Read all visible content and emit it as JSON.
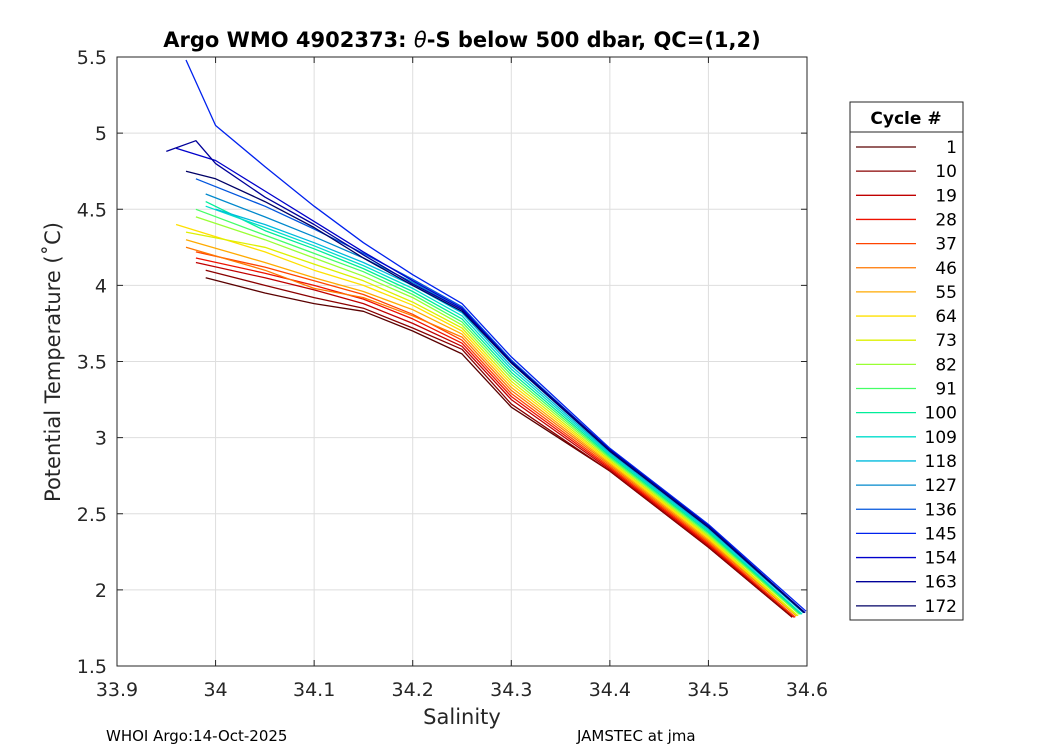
{
  "chart_data": {
    "type": "line",
    "title_prefix": "Argo WMO 4902373: ",
    "title_theta": "θ",
    "title_suffix": "-S below 500 dbar,  QC=(1,2)",
    "xlabel": "Salinity",
    "ylabel": "Potential Temperature (˚C)",
    "xlim": [
      33.9,
      34.6
    ],
    "ylim": [
      1.5,
      5.5
    ],
    "xticks": [
      33.9,
      34.0,
      34.1,
      34.2,
      34.3,
      34.4,
      34.5,
      34.6
    ],
    "xtick_labels": [
      "33.9",
      "34",
      "34.1",
      "34.2",
      "34.3",
      "34.4",
      "34.5",
      "34.6"
    ],
    "yticks": [
      1.5,
      2.0,
      2.5,
      3.0,
      3.5,
      4.0,
      4.5,
      5.0,
      5.5
    ],
    "ytick_labels": [
      "1.5",
      "2",
      "2.5",
      "3",
      "3.5",
      "4",
      "4.5",
      "5",
      "5.5"
    ],
    "grid": true,
    "legend_title": "Cycle #",
    "legend_position": "outside-right",
    "series": [
      {
        "name": "1",
        "color": "#5a0000",
        "points": [
          [
            33.99,
            4.05
          ],
          [
            34.05,
            3.95
          ],
          [
            34.1,
            3.88
          ],
          [
            34.15,
            3.83
          ],
          [
            34.2,
            3.7
          ],
          [
            34.25,
            3.55
          ],
          [
            34.3,
            3.2
          ],
          [
            34.4,
            2.78
          ],
          [
            34.5,
            2.28
          ],
          [
            34.585,
            1.82
          ]
        ]
      },
      {
        "name": "10",
        "color": "#8a0000",
        "points": [
          [
            33.99,
            4.1
          ],
          [
            34.05,
            4.0
          ],
          [
            34.1,
            3.92
          ],
          [
            34.15,
            3.85
          ],
          [
            34.2,
            3.72
          ],
          [
            34.25,
            3.58
          ],
          [
            34.3,
            3.22
          ],
          [
            34.4,
            2.78
          ],
          [
            34.5,
            2.28
          ],
          [
            34.585,
            1.82
          ]
        ]
      },
      {
        "name": "19",
        "color": "#c00000",
        "points": [
          [
            33.98,
            4.15
          ],
          [
            34.05,
            4.05
          ],
          [
            34.1,
            3.97
          ],
          [
            34.15,
            3.88
          ],
          [
            34.2,
            3.75
          ],
          [
            34.25,
            3.6
          ],
          [
            34.3,
            3.25
          ],
          [
            34.4,
            2.79
          ],
          [
            34.5,
            2.29
          ],
          [
            34.587,
            1.82
          ]
        ]
      },
      {
        "name": "28",
        "color": "#ee1100",
        "points": [
          [
            33.98,
            4.18
          ],
          [
            34.05,
            4.08
          ],
          [
            34.1,
            4.0
          ],
          [
            34.15,
            3.91
          ],
          [
            34.2,
            3.78
          ],
          [
            34.25,
            3.62
          ],
          [
            34.3,
            3.27
          ],
          [
            34.4,
            2.8
          ],
          [
            34.5,
            2.3
          ],
          [
            34.588,
            1.82
          ]
        ]
      },
      {
        "name": "37",
        "color": "#ff4400",
        "points": [
          [
            33.98,
            4.22
          ],
          [
            34.05,
            4.12
          ],
          [
            34.1,
            4.03
          ],
          [
            34.15,
            3.94
          ],
          [
            34.2,
            3.81
          ],
          [
            34.25,
            3.64
          ],
          [
            34.3,
            3.29
          ],
          [
            34.4,
            2.81
          ],
          [
            34.5,
            2.31
          ],
          [
            34.588,
            1.82
          ]
        ]
      },
      {
        "name": "46",
        "color": "#ff7700",
        "points": [
          [
            33.97,
            4.25
          ],
          [
            34.05,
            4.1
          ],
          [
            34.1,
            3.98
          ],
          [
            34.15,
            3.92
          ],
          [
            34.2,
            3.8
          ],
          [
            34.25,
            3.66
          ],
          [
            34.3,
            3.31
          ],
          [
            34.4,
            2.82
          ],
          [
            34.5,
            2.32
          ],
          [
            34.589,
            1.83
          ]
        ]
      },
      {
        "name": "55",
        "color": "#ffaa00",
        "points": [
          [
            33.97,
            4.3
          ],
          [
            34.05,
            4.15
          ],
          [
            34.1,
            4.05
          ],
          [
            34.15,
            3.96
          ],
          [
            34.2,
            3.84
          ],
          [
            34.25,
            3.68
          ],
          [
            34.3,
            3.33
          ],
          [
            34.4,
            2.83
          ],
          [
            34.5,
            2.33
          ],
          [
            34.59,
            1.83
          ]
        ]
      },
      {
        "name": "64",
        "color": "#ffe000",
        "points": [
          [
            33.96,
            4.4
          ],
          [
            34.05,
            4.22
          ],
          [
            34.1,
            4.1
          ],
          [
            34.15,
            4.0
          ],
          [
            34.2,
            3.87
          ],
          [
            34.25,
            3.7
          ],
          [
            34.3,
            3.35
          ],
          [
            34.4,
            2.84
          ],
          [
            34.5,
            2.34
          ],
          [
            34.59,
            1.83
          ]
        ]
      },
      {
        "name": "73",
        "color": "#ddf000",
        "points": [
          [
            33.97,
            4.35
          ],
          [
            34.05,
            4.25
          ],
          [
            34.1,
            4.14
          ],
          [
            34.15,
            4.03
          ],
          [
            34.2,
            3.89
          ],
          [
            34.25,
            3.72
          ],
          [
            34.3,
            3.37
          ],
          [
            34.4,
            2.85
          ],
          [
            34.5,
            2.35
          ],
          [
            34.591,
            1.83
          ]
        ]
      },
      {
        "name": "82",
        "color": "#99ff33",
        "points": [
          [
            33.98,
            4.45
          ],
          [
            34.05,
            4.3
          ],
          [
            34.1,
            4.18
          ],
          [
            34.15,
            4.06
          ],
          [
            34.2,
            3.92
          ],
          [
            34.25,
            3.74
          ],
          [
            34.3,
            3.39
          ],
          [
            34.4,
            2.86
          ],
          [
            34.5,
            2.36
          ],
          [
            34.592,
            1.84
          ]
        ]
      },
      {
        "name": "91",
        "color": "#44ff66",
        "points": [
          [
            33.98,
            4.5
          ],
          [
            34.05,
            4.33
          ],
          [
            34.1,
            4.21
          ],
          [
            34.15,
            4.09
          ],
          [
            34.2,
            3.94
          ],
          [
            34.25,
            3.76
          ],
          [
            34.3,
            3.41
          ],
          [
            34.4,
            2.87
          ],
          [
            34.5,
            2.37
          ],
          [
            34.593,
            1.84
          ]
        ]
      },
      {
        "name": "100",
        "color": "#00ee99",
        "points": [
          [
            33.99,
            4.55
          ],
          [
            34.05,
            4.36
          ],
          [
            34.1,
            4.24
          ],
          [
            34.15,
            4.11
          ],
          [
            34.2,
            3.96
          ],
          [
            34.25,
            3.78
          ],
          [
            34.3,
            3.43
          ],
          [
            34.4,
            2.88
          ],
          [
            34.5,
            2.38
          ],
          [
            34.594,
            1.84
          ]
        ]
      },
      {
        "name": "109",
        "color": "#00ddcc",
        "points": [
          [
            33.99,
            4.52
          ],
          [
            34.05,
            4.38
          ],
          [
            34.1,
            4.26
          ],
          [
            34.15,
            4.13
          ],
          [
            34.2,
            3.98
          ],
          [
            34.25,
            3.8
          ],
          [
            34.3,
            3.45
          ],
          [
            34.4,
            2.89
          ],
          [
            34.5,
            2.39
          ],
          [
            34.595,
            1.84
          ]
        ]
      },
      {
        "name": "118",
        "color": "#00bbdd",
        "points": [
          [
            34.0,
            4.5
          ],
          [
            34.05,
            4.4
          ],
          [
            34.1,
            4.28
          ],
          [
            34.15,
            4.15
          ],
          [
            34.2,
            4.0
          ],
          [
            34.25,
            3.82
          ],
          [
            34.3,
            3.47
          ],
          [
            34.4,
            2.9
          ],
          [
            34.5,
            2.4
          ],
          [
            34.596,
            1.85
          ]
        ]
      },
      {
        "name": "127",
        "color": "#0088cc",
        "points": [
          [
            33.99,
            4.6
          ],
          [
            34.05,
            4.45
          ],
          [
            34.1,
            4.32
          ],
          [
            34.15,
            4.18
          ],
          [
            34.2,
            4.02
          ],
          [
            34.25,
            3.84
          ],
          [
            34.3,
            3.49
          ],
          [
            34.4,
            2.91
          ],
          [
            34.5,
            2.41
          ],
          [
            34.597,
            1.85
          ]
        ]
      },
      {
        "name": "136",
        "color": "#0055dd",
        "points": [
          [
            33.98,
            4.7
          ],
          [
            34.05,
            4.52
          ],
          [
            34.1,
            4.37
          ],
          [
            34.15,
            4.21
          ],
          [
            34.2,
            4.04
          ],
          [
            34.25,
            3.86
          ],
          [
            34.3,
            3.51
          ],
          [
            34.4,
            2.92
          ],
          [
            34.5,
            2.42
          ],
          [
            34.598,
            1.85
          ]
        ]
      },
      {
        "name": "145",
        "color": "#0022ee",
        "points": [
          [
            33.97,
            5.48
          ],
          [
            34.0,
            5.05
          ],
          [
            34.05,
            4.78
          ],
          [
            34.1,
            4.52
          ],
          [
            34.15,
            4.28
          ],
          [
            34.2,
            4.07
          ],
          [
            34.25,
            3.88
          ],
          [
            34.3,
            3.53
          ],
          [
            34.4,
            2.93
          ],
          [
            34.5,
            2.43
          ],
          [
            34.599,
            1.86
          ]
        ]
      },
      {
        "name": "154",
        "color": "#0000cc",
        "points": [
          [
            33.96,
            4.9
          ],
          [
            34.0,
            4.82
          ],
          [
            34.05,
            4.62
          ],
          [
            34.1,
            4.42
          ],
          [
            34.15,
            4.22
          ],
          [
            34.2,
            4.03
          ],
          [
            34.25,
            3.85
          ],
          [
            34.3,
            3.5
          ],
          [
            34.4,
            2.92
          ],
          [
            34.5,
            2.42
          ],
          [
            34.598,
            1.85
          ]
        ]
      },
      {
        "name": "163",
        "color": "#000099",
        "points": [
          [
            33.95,
            4.88
          ],
          [
            33.98,
            4.95
          ],
          [
            34.0,
            4.8
          ],
          [
            34.05,
            4.58
          ],
          [
            34.1,
            4.4
          ],
          [
            34.15,
            4.2
          ],
          [
            34.2,
            4.01
          ],
          [
            34.25,
            3.84
          ],
          [
            34.3,
            3.5
          ],
          [
            34.4,
            2.92
          ],
          [
            34.5,
            2.42
          ],
          [
            34.598,
            1.85
          ]
        ]
      },
      {
        "name": "172",
        "color": "#000066",
        "points": [
          [
            33.97,
            4.75
          ],
          [
            34.0,
            4.7
          ],
          [
            34.05,
            4.55
          ],
          [
            34.1,
            4.38
          ],
          [
            34.15,
            4.18
          ],
          [
            34.2,
            4.0
          ],
          [
            34.25,
            3.83
          ],
          [
            34.3,
            3.49
          ],
          [
            34.4,
            2.91
          ],
          [
            34.5,
            2.41
          ],
          [
            34.597,
            1.85
          ]
        ]
      }
    ]
  },
  "footer": {
    "left": "WHOI Argo:14-Oct-2025",
    "right": "JAMSTEC at jma"
  }
}
